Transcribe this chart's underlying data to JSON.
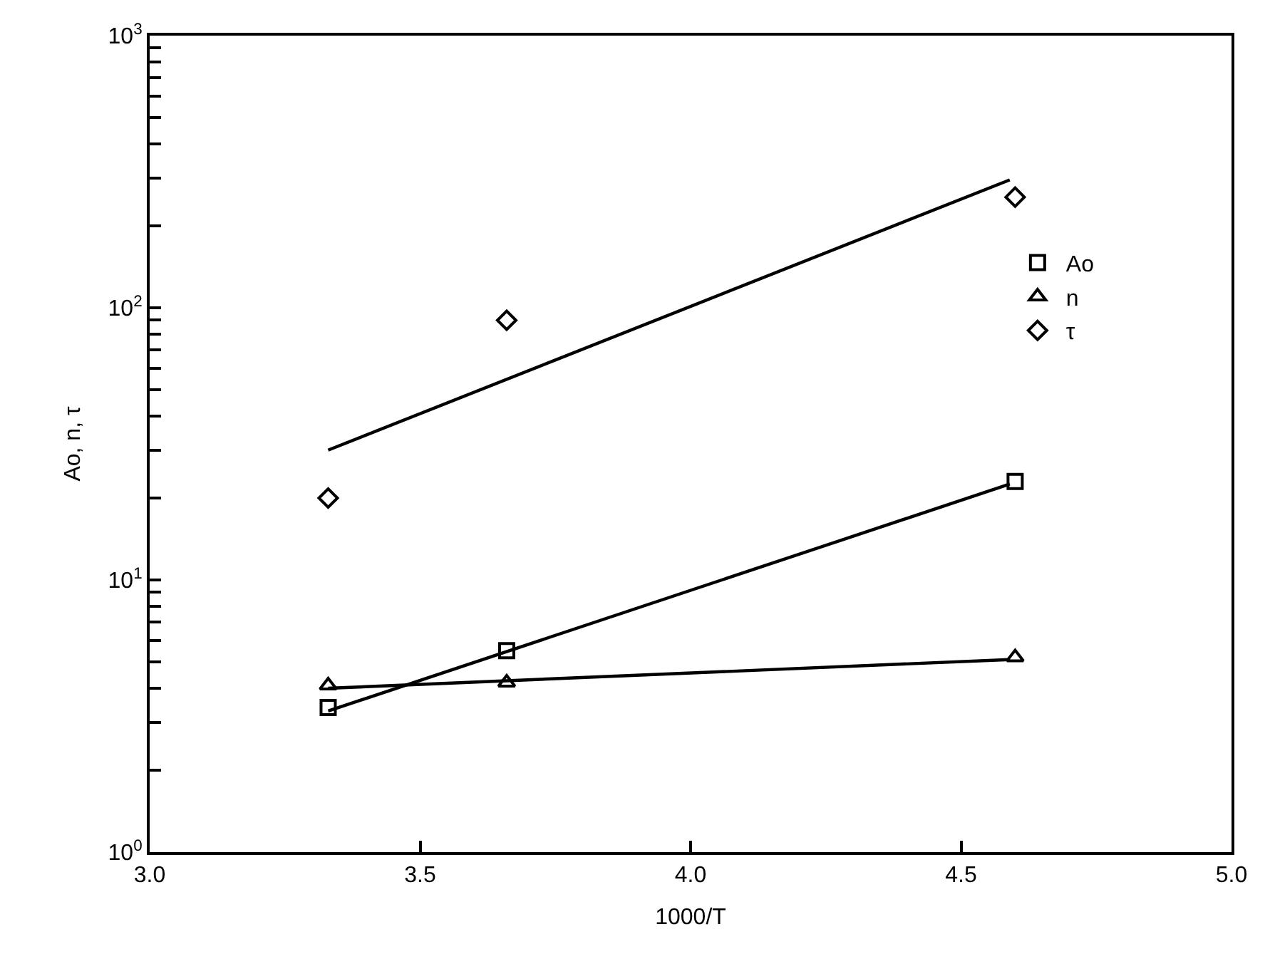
{
  "chart_data": {
    "type": "scatter",
    "xlabel": "1000/T",
    "ylabel": "Ao, n, τ",
    "log": "y",
    "legend": "right",
    "xlim": [
      3.0,
      5.0
    ],
    "xticks": [
      {
        "value": 3.0,
        "label": "3.0"
      },
      {
        "value": 3.5,
        "label": "3.5"
      },
      {
        "value": 4.0,
        "label": "4.0"
      },
      {
        "value": 4.5,
        "label": "4.5"
      },
      {
        "value": 5.0,
        "label": "5.0"
      }
    ],
    "ylim": [
      1,
      1000
    ],
    "yticks": [
      {
        "value": 1,
        "label": "10$^{0}$"
      },
      {
        "value": 2,
        "label": null
      },
      {
        "value": 3,
        "label": null
      },
      {
        "value": 4,
        "label": null
      },
      {
        "value": 5,
        "label": null
      },
      {
        "value": 6,
        "label": null
      },
      {
        "value": 7,
        "label": null
      },
      {
        "value": 8,
        "label": null
      },
      {
        "value": 9,
        "label": null
      },
      {
        "value": 10,
        "label": "10$^{1}$"
      },
      {
        "value": 20,
        "label": null
      },
      {
        "value": 30,
        "label": null
      },
      {
        "value": 40,
        "label": null
      },
      {
        "value": 50,
        "label": null
      },
      {
        "value": 60,
        "label": null
      },
      {
        "value": 70,
        "label": null
      },
      {
        "value": 80,
        "label": null
      },
      {
        "value": 90,
        "label": null
      },
      {
        "value": 100,
        "label": "10$^{2}$"
      },
      {
        "value": 200,
        "label": null
      },
      {
        "value": 300,
        "label": null
      },
      {
        "value": 400,
        "label": null
      },
      {
        "value": 500,
        "label": null
      },
      {
        "value": 600,
        "label": null
      },
      {
        "value": 700,
        "label": null
      },
      {
        "value": 800,
        "label": null
      },
      {
        "value": 900,
        "label": null
      },
      {
        "value": 1000,
        "label": "10$^{3}$"
      }
    ],
    "series": [
      {
        "name": "Ao",
        "marker": "square",
        "color": "#000000",
        "x": [
          3.33,
          3.66,
          4.6
        ],
        "values": [
          3.4,
          5.5,
          23
        ]
      },
      {
        "name": "n",
        "marker": "triangle",
        "color": "#000000",
        "x": [
          3.33,
          3.66,
          4.6
        ],
        "values": [
          4.1,
          4.2,
          5.2
        ]
      },
      {
        "name": "τ",
        "marker": "diamond",
        "color": "#000000",
        "x": [
          3.33,
          3.66,
          4.6
        ],
        "values": [
          20,
          90,
          255
        ]
      },
      {
        "type": "line",
        "color": "#000000",
        "line_style": "solid",
        "x": [
          3.33,
          4.59
        ],
        "values": [
          3.3,
          22.5
        ]
      },
      {
        "type": "line",
        "color": "#000000",
        "line_style": "solid",
        "x": [
          3.33,
          4.59
        ],
        "values": [
          4.0,
          5.1
        ]
      },
      {
        "type": "line",
        "color": "#000000",
        "line_style": "solid",
        "x": [
          3.33,
          4.59
        ],
        "values": [
          30,
          295
        ]
      }
    ]
  }
}
